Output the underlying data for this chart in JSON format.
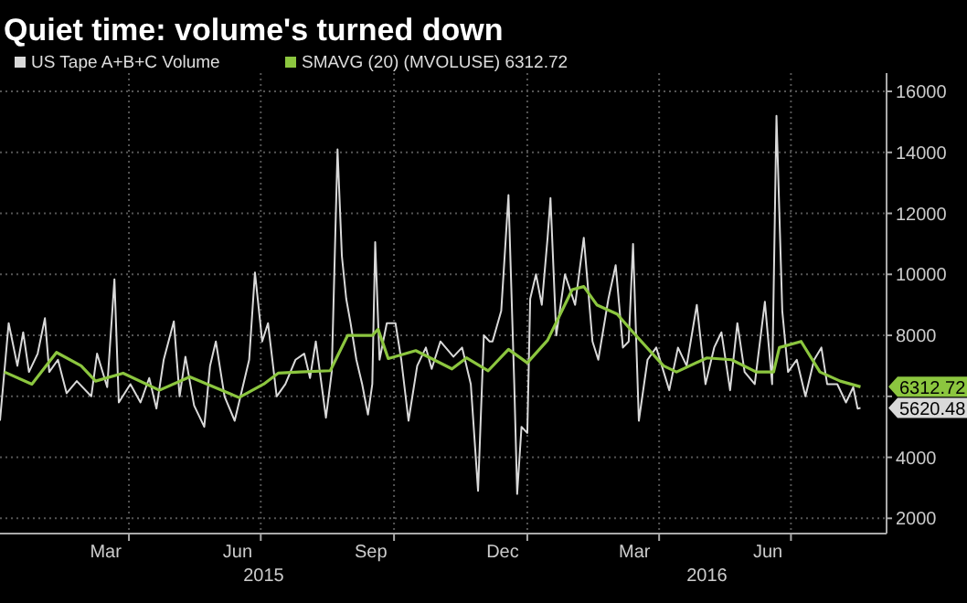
{
  "chart_data": {
    "type": "line",
    "title": "Quiet time: volume's turned down",
    "xlim": [
      "2015-01-02",
      "2016-09-05"
    ],
    "xticks": [
      {
        "value": "2015-03-16",
        "label": "Mar"
      },
      {
        "value": "2015-04-01",
        "label": null
      },
      {
        "value": "2015-06-15",
        "label": "Jun"
      },
      {
        "value": "2015-07-01",
        "label": null
      },
      {
        "value": "2015-09-15",
        "label": "Sep"
      },
      {
        "value": "2015-10-01",
        "label": null
      },
      {
        "value": "2015-12-15",
        "label": "Dec"
      },
      {
        "value": "2016-01-01",
        "label": null
      },
      {
        "value": "2016-03-15",
        "label": "Mar"
      },
      {
        "value": "2016-04-01",
        "label": null
      },
      {
        "value": "2016-06-15",
        "label": "Jun"
      },
      {
        "value": "2016-07-01",
        "label": null
      }
    ],
    "ylim": [
      1500,
      16600
    ],
    "yticks": [
      2000,
      4000,
      {
        "value": 6000,
        "label": null
      },
      8000,
      10000,
      12000,
      14000,
      16000
    ],
    "grid": true,
    "legend": "top left",
    "annotations": [
      {
        "text": "6312.72",
        "x": "2016-08-18",
        "y": 6312.72
      },
      {
        "text": "5620.48",
        "x": "2016-08-18",
        "y": 5620.48
      },
      "2015",
      "2016"
    ],
    "series": [
      {
        "name": "US Tape A+B+C Volume",
        "color": "#d9d9d9",
        "x": [
          "2015-01-02",
          "2015-01-08",
          "2015-01-14",
          "2015-01-18",
          "2015-01-22",
          "2015-01-28",
          "2015-02-02",
          "2015-02-05",
          "2015-02-11",
          "2015-02-17",
          "2015-02-24",
          "2015-03-06",
          "2015-03-10",
          "2015-03-17",
          "2015-03-22",
          "2015-03-25",
          "2015-04-02",
          "2015-04-09",
          "2015-04-15",
          "2015-04-20",
          "2015-04-25",
          "2015-05-02",
          "2015-05-06",
          "2015-05-10",
          "2015-05-16",
          "2015-05-23",
          "2015-05-27",
          "2015-05-31",
          "2015-06-06",
          "2015-06-13",
          "2015-06-19",
          "2015-06-23",
          "2015-06-27",
          "2015-07-02",
          "2015-07-06",
          "2015-07-12",
          "2015-07-18",
          "2015-07-25",
          "2015-07-31",
          "2015-08-04",
          "2015-08-08",
          "2015-08-15",
          "2015-08-19",
          "2015-08-23",
          "2015-08-26",
          "2015-08-29",
          "2015-09-01",
          "2015-09-05",
          "2015-09-09",
          "2015-09-13",
          "2015-09-16",
          "2015-09-18",
          "2015-09-21",
          "2015-09-26",
          "2015-10-02",
          "2015-10-06",
          "2015-10-11",
          "2015-10-17",
          "2015-10-23",
          "2015-10-27",
          "2015-11-02",
          "2015-11-11",
          "2015-11-17",
          "2015-11-23",
          "2015-11-28",
          "2015-12-02",
          "2015-12-06",
          "2015-12-08",
          "2015-12-14",
          "2015-12-19",
          "2015-12-23",
          "2015-12-25",
          "2015-12-28",
          "2016-01-01",
          "2016-01-03",
          "2016-01-07",
          "2016-01-11",
          "2016-01-15",
          "2016-01-17",
          "2016-01-21",
          "2016-01-27",
          "2016-02-03",
          "2016-02-09",
          "2016-02-15",
          "2016-02-19",
          "2016-02-26",
          "2016-03-02",
          "2016-03-07",
          "2016-03-11",
          "2016-03-14",
          "2016-03-18",
          "2016-03-24",
          "2016-03-30",
          "2016-04-08",
          "2016-04-14",
          "2016-04-20",
          "2016-04-27",
          "2016-05-03",
          "2016-05-09",
          "2016-05-14",
          "2016-05-20",
          "2016-05-25",
          "2016-05-30",
          "2016-06-06",
          "2016-06-13",
          "2016-06-18",
          "2016-06-21",
          "2016-06-25",
          "2016-06-29",
          "2016-07-05",
          "2016-07-11",
          "2016-07-17",
          "2016-07-22",
          "2016-07-26",
          "2016-08-02",
          "2016-08-08",
          "2016-08-13",
          "2016-08-16",
          "2016-08-18"
        ],
        "values": [
          5200,
          8400,
          7000,
          8100,
          6800,
          7400,
          8560,
          6800,
          7200,
          6100,
          6500,
          6000,
          7400,
          6300,
          9840,
          5800,
          6400,
          5800,
          6600,
          5600,
          7200,
          8460,
          6000,
          7300,
          5700,
          5000,
          7000,
          7800,
          6000,
          5200,
          6400,
          7200,
          10060,
          7800,
          8400,
          6000,
          6400,
          7200,
          7400,
          6600,
          7800,
          5300,
          6800,
          14100,
          10600,
          9200,
          8400,
          7200,
          6400,
          5400,
          6400,
          11060,
          7200,
          8400,
          8400,
          7200,
          5200,
          7000,
          7600,
          6900,
          7800,
          7300,
          7600,
          6400,
          2900,
          8000,
          7800,
          7800,
          8800,
          12600,
          6400,
          2800,
          5000,
          4800,
          9200,
          10000,
          9000,
          11200,
          12500,
          8000,
          10000,
          9000,
          11200,
          7800,
          7200,
          9200,
          10300,
          7600,
          7800,
          11000,
          5200,
          7200,
          7600,
          6200,
          7600,
          7000,
          9000,
          6400,
          7600,
          8100,
          6200,
          8400,
          6800,
          6400,
          9100,
          6400,
          15200,
          8800,
          6800,
          7200,
          6000,
          7200,
          7600,
          6400,
          6400,
          5800,
          6300,
          5600,
          5620.48
        ]
      },
      {
        "name": "SMAVG (20) (MVOLUSE) 6312.72",
        "color": "#8cc63f",
        "x": [
          "2015-01-05",
          "2015-01-24",
          "2015-02-10",
          "2015-02-27",
          "2015-03-09",
          "2015-03-28",
          "2015-04-22",
          "2015-05-13",
          "2015-06-16",
          "2015-07-03",
          "2015-07-13",
          "2015-07-28",
          "2015-08-18",
          "2015-08-30",
          "2015-09-16",
          "2015-09-20",
          "2015-09-27",
          "2015-10-16",
          "2015-11-10",
          "2015-11-20",
          "2015-12-05",
          "2015-12-19",
          "2016-01-01",
          "2016-01-15",
          "2016-02-01",
          "2016-02-09",
          "2016-02-18",
          "2016-03-03",
          "2016-03-14",
          "2016-04-04",
          "2016-04-13",
          "2016-05-04",
          "2016-05-21",
          "2016-06-07",
          "2016-06-19",
          "2016-06-23",
          "2016-07-08",
          "2016-07-21",
          "2016-08-04",
          "2016-08-18"
        ],
        "values": [
          6800,
          6400,
          7440,
          7000,
          6500,
          6760,
          6200,
          6640,
          5960,
          6400,
          6760,
          6800,
          6840,
          8000,
          8000,
          8200,
          7240,
          7500,
          6900,
          7260,
          6840,
          7540,
          7100,
          7840,
          9500,
          9600,
          9000,
          8700,
          8100,
          7000,
          6800,
          7260,
          7200,
          6800,
          6800,
          7600,
          7800,
          6800,
          6500,
          6312.72
        ]
      }
    ]
  }
}
